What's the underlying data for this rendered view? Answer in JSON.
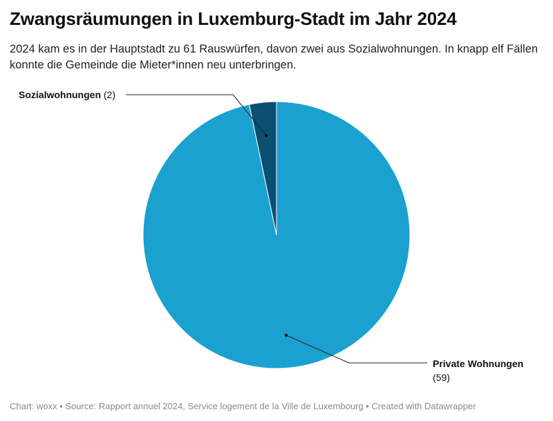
{
  "title": "Zwangsräumungen in Luxemburg-Stadt im Jahr 2024",
  "subtitle": "2024 kam es in der Hauptstadt zu 61 Rauswürfen, davon zwei aus Sozialwohnungen. In knapp elf Fällen konnte die Gemeinde die Mieter*innen neu unterbringen.",
  "footer": "Chart: woxx • Source: Rapport annuel 2024, Service logement de la Ville de Luxembourg • Created with Datawrapper",
  "chart_data": {
    "type": "pie",
    "title": "Zwangsräumungen in Luxemburg-Stadt im Jahr 2024",
    "total": 61,
    "slices": [
      {
        "name": "Sozialwohnungen",
        "value": 2,
        "value_label": "(2)",
        "color": "#0b4f72"
      },
      {
        "name": "Private Wohnungen",
        "value": 59,
        "value_label": "(59)",
        "color": "#1aa1d0"
      }
    ]
  }
}
